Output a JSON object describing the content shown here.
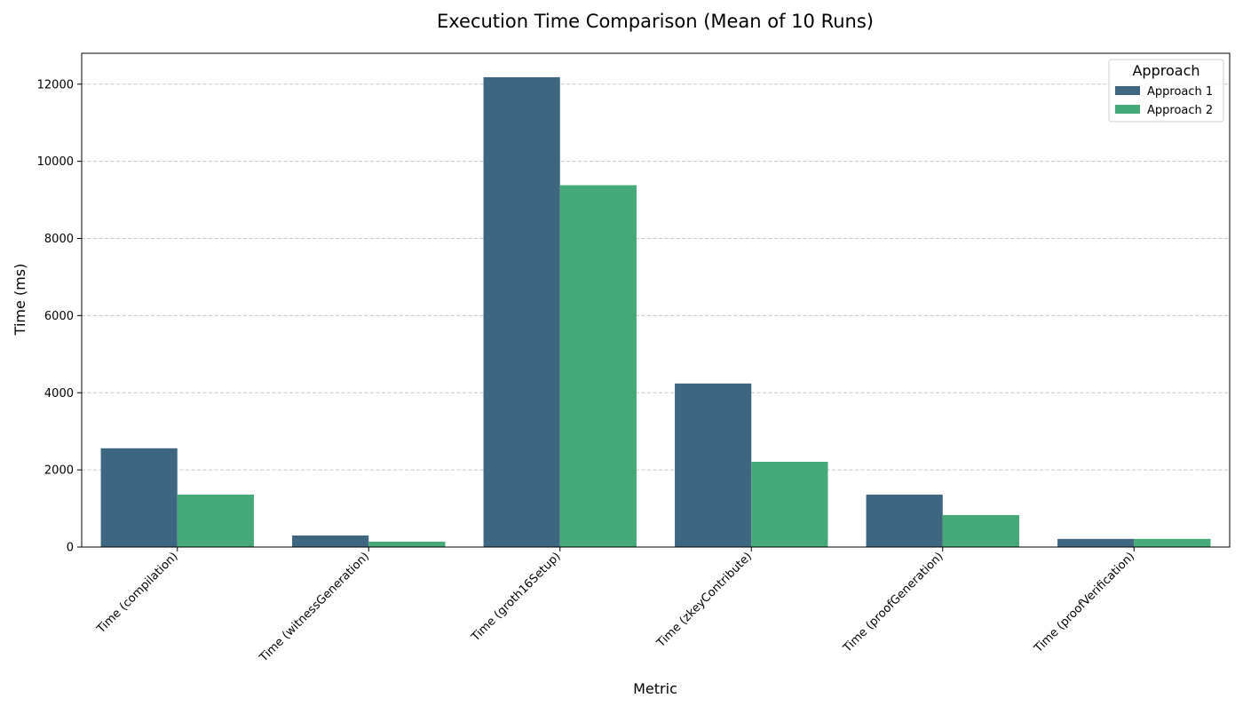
{
  "chart_data": {
    "type": "bar",
    "title": "Execution Time Comparison (Mean of 10 Runs)",
    "xlabel": "Metric",
    "ylabel": "Time (ms)",
    "categories": [
      "Time (compilation)",
      "Time (witnessGeneration)",
      "Time (groth16Setup)",
      "Time (zkeyContribute)",
      "Time (proofGeneration)",
      "Time (proofVerification)"
    ],
    "series": [
      {
        "name": "Approach 1",
        "color": "#3e6680",
        "values": [
          2560,
          300,
          12180,
          4240,
          1360,
          210
        ]
      },
      {
        "name": "Approach 2",
        "color": "#45a978",
        "values": [
          1360,
          140,
          9380,
          2210,
          830,
          210
        ]
      }
    ],
    "ylim": [
      0,
      12800
    ],
    "yticks": [
      0,
      2000,
      4000,
      6000,
      8000,
      10000,
      12000
    ],
    "grid": "horizontal dashed",
    "legend": {
      "title": "Approach",
      "placement": "top-right"
    }
  }
}
